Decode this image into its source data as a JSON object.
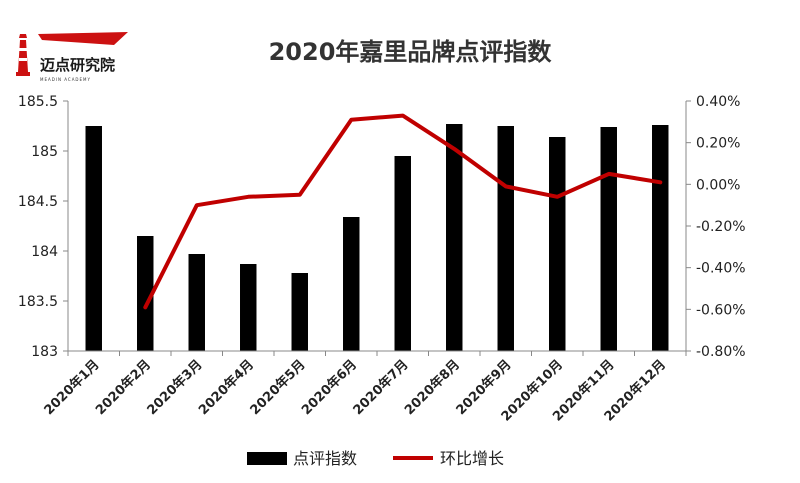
{
  "logo": {
    "name": "迈点研究院",
    "subtitle": "MEADIN ACADEMY",
    "accent_color": "#cc1111",
    "icon": "lighthouse-icon"
  },
  "chart_data": {
    "type": "bar",
    "title": "2020年嘉里品牌点评指数",
    "categories": [
      "2020年1月",
      "2020年2月",
      "2020年3月",
      "2020年4月",
      "2020年5月",
      "2020年6月",
      "2020年7月",
      "2020年8月",
      "2020年9月",
      "2020年10月",
      "2020年11月",
      "2020年12月"
    ],
    "series": [
      {
        "name": "点评指数",
        "type": "bar",
        "axis": "left",
        "color": "#000000",
        "values": [
          185.25,
          184.15,
          183.97,
          183.87,
          183.78,
          184.34,
          184.95,
          185.27,
          185.25,
          185.14,
          185.24,
          185.26
        ]
      },
      {
        "name": "环比增长",
        "type": "line",
        "axis": "right",
        "color": "#c00000",
        "values": [
          null,
          -0.59,
          -0.1,
          -0.06,
          -0.05,
          0.31,
          0.33,
          0.17,
          -0.01,
          -0.06,
          0.05,
          0.01
        ]
      }
    ],
    "y_left": {
      "min": 183,
      "max": 185.5,
      "step": 0.5,
      "tick_labels": [
        "183",
        "183.5",
        "184",
        "184.5",
        "185",
        "185.5"
      ]
    },
    "y_right": {
      "min": -0.8,
      "max": 0.4,
      "step": 0.2,
      "tick_labels": [
        "-0.80%",
        "-0.60%",
        "-0.40%",
        "-0.20%",
        "0.00%",
        "0.20%",
        "0.40%"
      ]
    },
    "grid": false,
    "legend_position": "bottom"
  }
}
